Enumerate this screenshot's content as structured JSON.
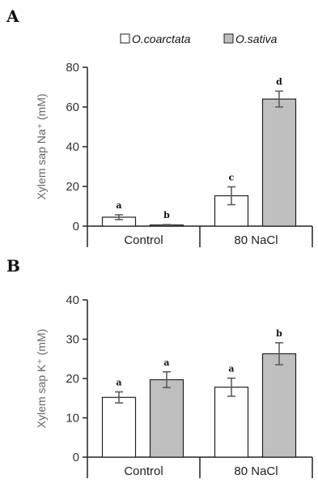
{
  "colors": {
    "O_coarctata": "#ffffff",
    "O_sativa": "#bfbfbf",
    "bar_edge": "#222222"
  },
  "legend": {
    "items": [
      {
        "label": "O.coarctata",
        "color": "#ffffff"
      },
      {
        "label": "O.sativa",
        "color": "#bfbfbf"
      }
    ]
  },
  "chart_data": [
    {
      "panel": "A",
      "type": "bar",
      "categories": [
        "Control",
        "80 NaCl"
      ],
      "series": [
        {
          "name": "O.coarctata",
          "values": [
            4.5,
            15.3
          ],
          "errors": [
            1.2,
            4.5
          ],
          "sig": [
            "a",
            "c"
          ]
        },
        {
          "name": "O.sativa",
          "values": [
            0.6,
            64.0
          ],
          "errors": [
            0.2,
            4.0
          ],
          "sig": [
            "b",
            "d"
          ]
        }
      ],
      "ylabel": "Xylem sap Na⁺ (mM)",
      "ylim": [
        0,
        80
      ],
      "yticks": [
        "0",
        "20",
        "40",
        "60",
        "80"
      ],
      "grid": false
    },
    {
      "panel": "B",
      "type": "bar",
      "categories": [
        "Control",
        "80 NaCl"
      ],
      "series": [
        {
          "name": "O.coarctata",
          "values": [
            15.2,
            17.8
          ],
          "errors": [
            1.4,
            2.3
          ],
          "sig": [
            "a",
            "a"
          ]
        },
        {
          "name": "O.sativa",
          "values": [
            19.7,
            26.3
          ],
          "errors": [
            2.0,
            2.8
          ],
          "sig": [
            "a",
            "b"
          ]
        }
      ],
      "ylabel": "Xylem sap K⁺ (mM)",
      "ylim": [
        0,
        40
      ],
      "yticks": [
        "0",
        "10",
        "20",
        "30",
        "40"
      ],
      "grid": false
    }
  ]
}
